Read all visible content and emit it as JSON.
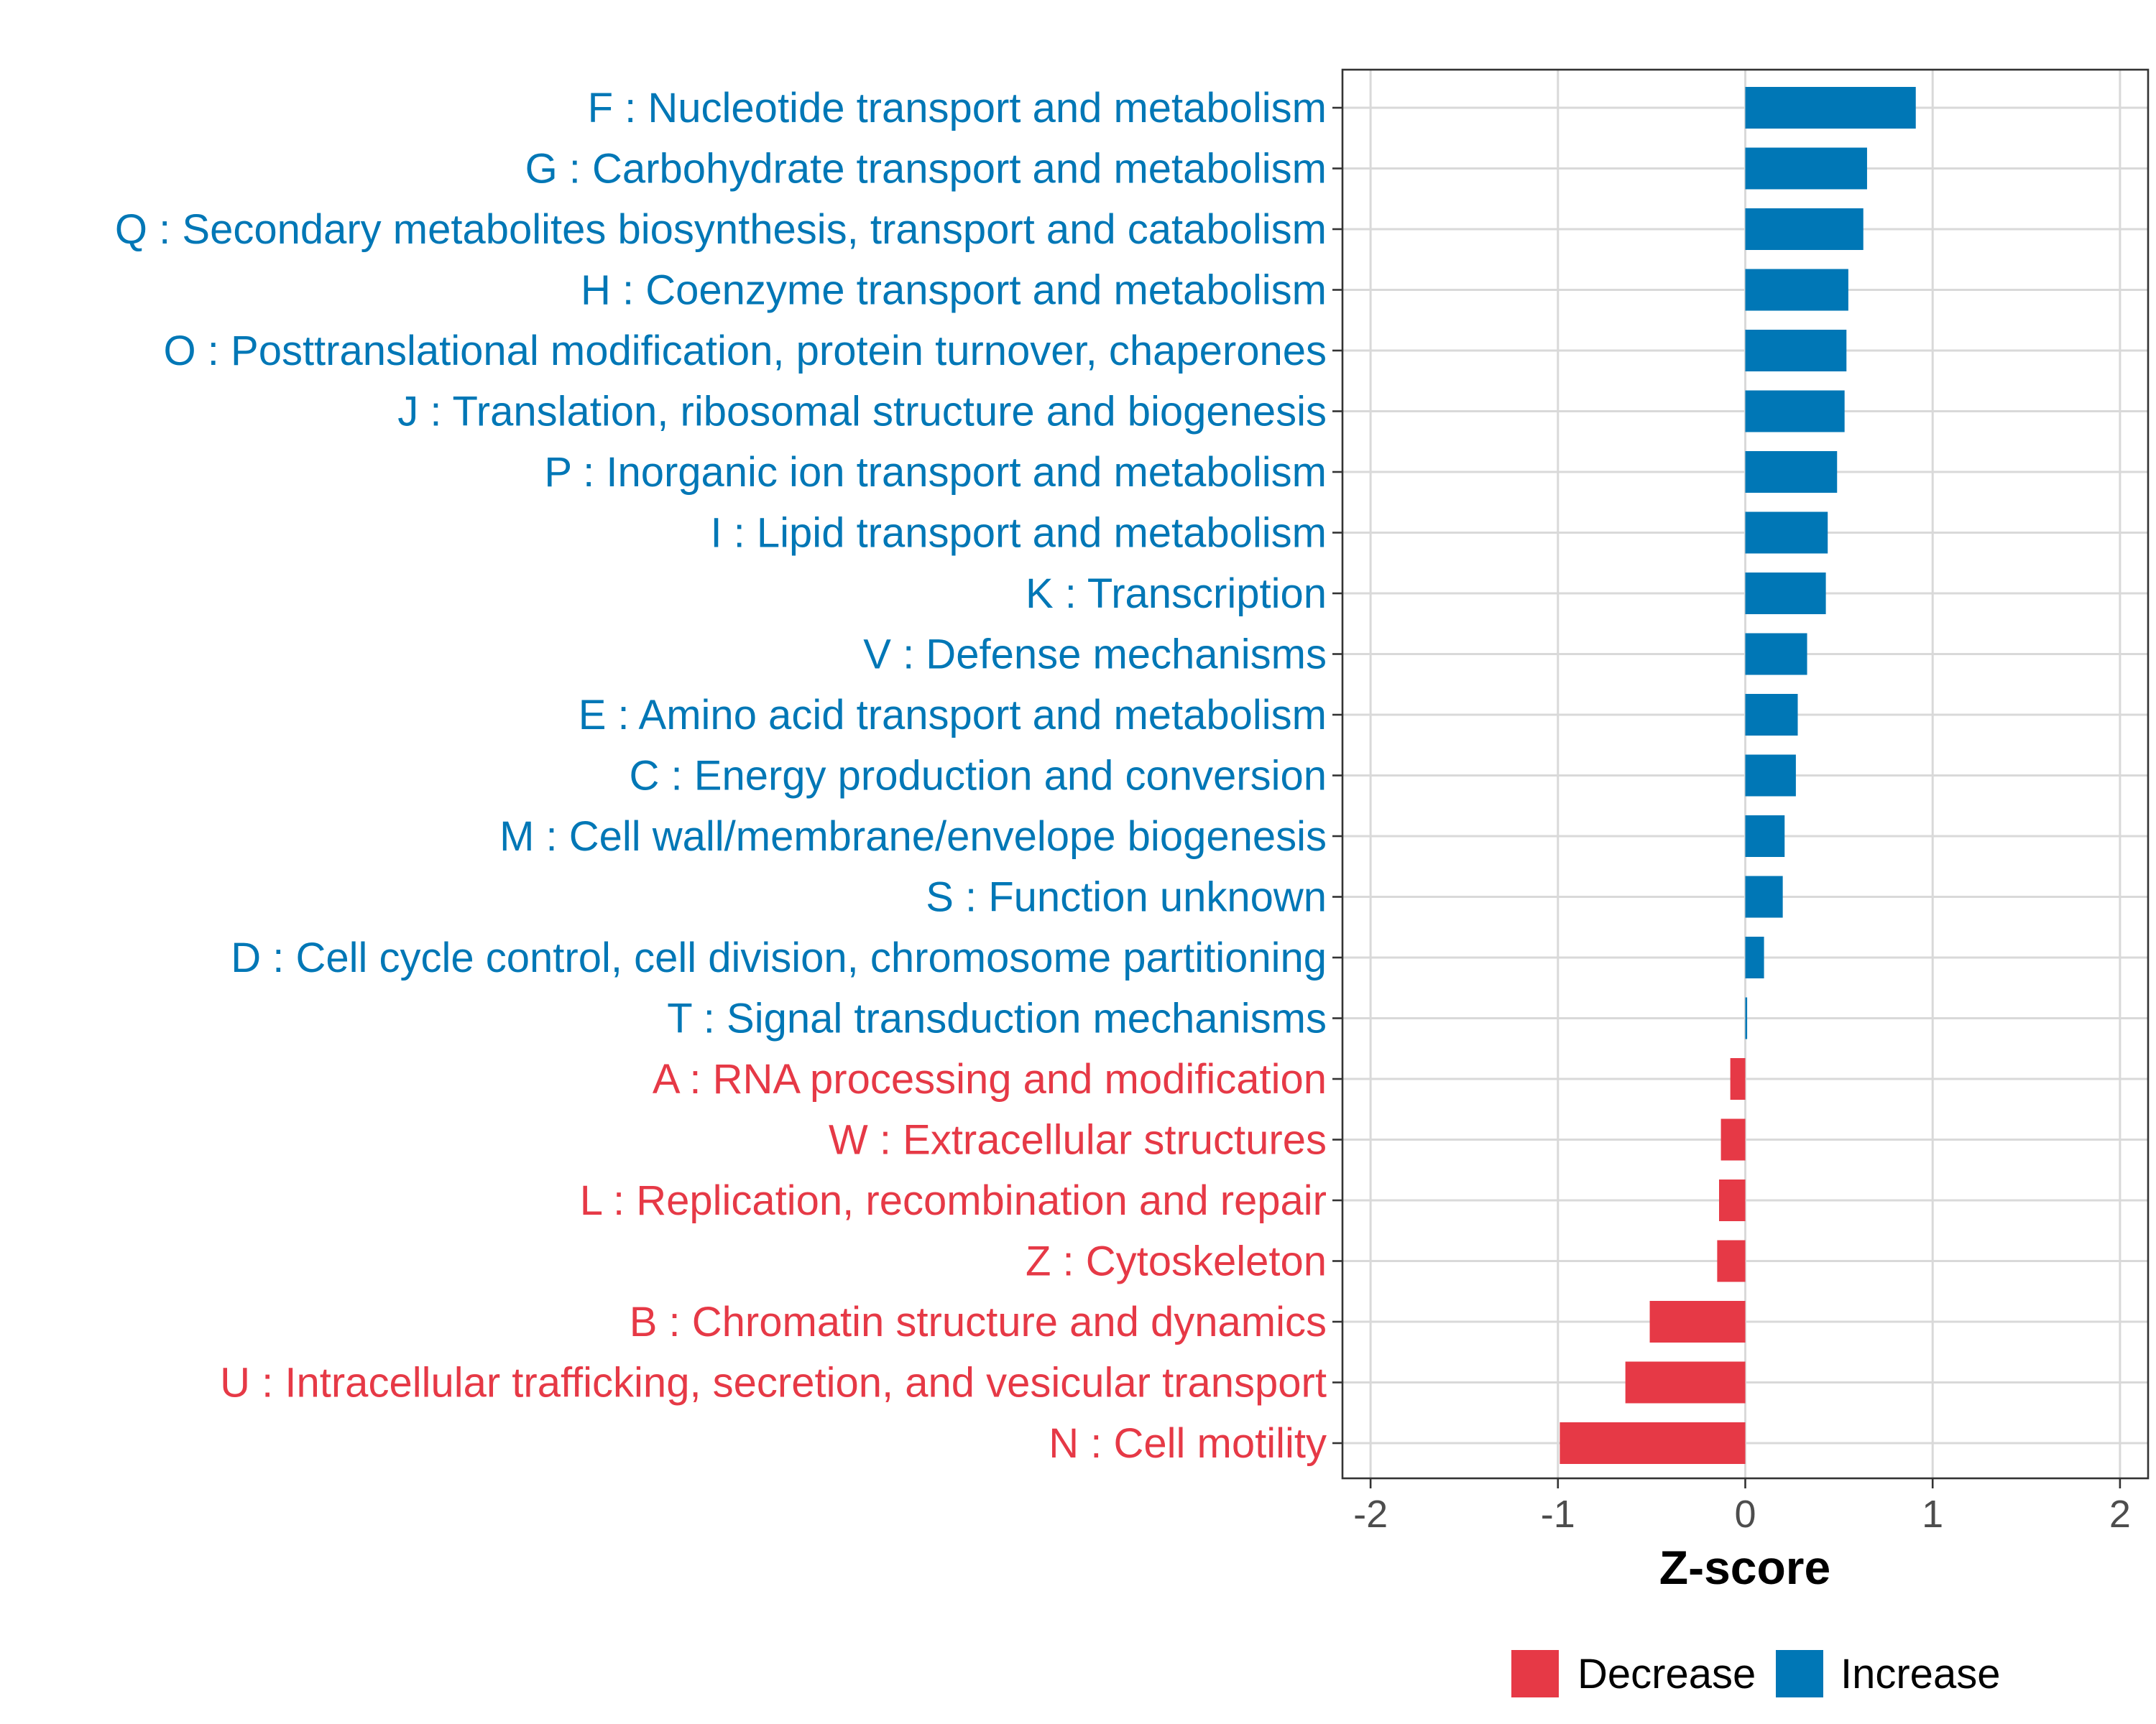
{
  "chart_data": {
    "type": "bar",
    "orientation": "horizontal",
    "title": "",
    "xlabel": "Z-score",
    "ylabel": "",
    "xlim": [
      -2.15,
      2.15
    ],
    "xticks": [
      -2,
      -1,
      0,
      1,
      2
    ],
    "xtick_labels": [
      "-2",
      "-1",
      "0",
      "1",
      "2"
    ],
    "grid": true,
    "legend_position": "bottom",
    "colors": {
      "Decrease": "#e63946",
      "Increase": "#0077b6"
    },
    "legend": [
      {
        "label": "Decrease",
        "key": "Decrease"
      },
      {
        "label": "Increase",
        "key": "Increase"
      }
    ],
    "categories": [
      "F : Nucleotide transport and metabolism",
      "G : Carbohydrate transport and metabolism",
      "Q : Secondary metabolites biosynthesis, transport and catabolism",
      "H : Coenzyme transport and metabolism",
      "O : Posttranslational modification, protein turnover, chaperones",
      "J : Translation, ribosomal structure and biogenesis",
      "P : Inorganic ion transport and metabolism",
      "I : Lipid transport and metabolism",
      "K : Transcription",
      "V : Defense mechanisms",
      "E : Amino acid transport and metabolism",
      "C : Energy production and conversion",
      "M : Cell wall/membrane/envelope biogenesis",
      "S : Function unknown",
      "D : Cell cycle control, cell division, chromosome partitioning",
      "T : Signal transduction mechanisms",
      "A : RNA processing and modification",
      "W : Extracellular structures",
      "L : Replication, recombination and repair",
      "Z : Cytoskeleton",
      "B : Chromatin structure and dynamics",
      "U : Intracellular trafficking, secretion, and vesicular transport",
      "N : Cell motility"
    ],
    "values": [
      0.91,
      0.65,
      0.63,
      0.55,
      0.54,
      0.53,
      0.49,
      0.44,
      0.43,
      0.33,
      0.28,
      0.27,
      0.21,
      0.2,
      0.1,
      0.01,
      -0.08,
      -0.13,
      -0.14,
      -0.15,
      -0.51,
      -0.64,
      -0.99
    ],
    "groups": [
      "Increase",
      "Increase",
      "Increase",
      "Increase",
      "Increase",
      "Increase",
      "Increase",
      "Increase",
      "Increase",
      "Increase",
      "Increase",
      "Increase",
      "Increase",
      "Increase",
      "Increase",
      "Increase",
      "Decrease",
      "Decrease",
      "Decrease",
      "Decrease",
      "Decrease",
      "Decrease",
      "Decrease"
    ]
  }
}
